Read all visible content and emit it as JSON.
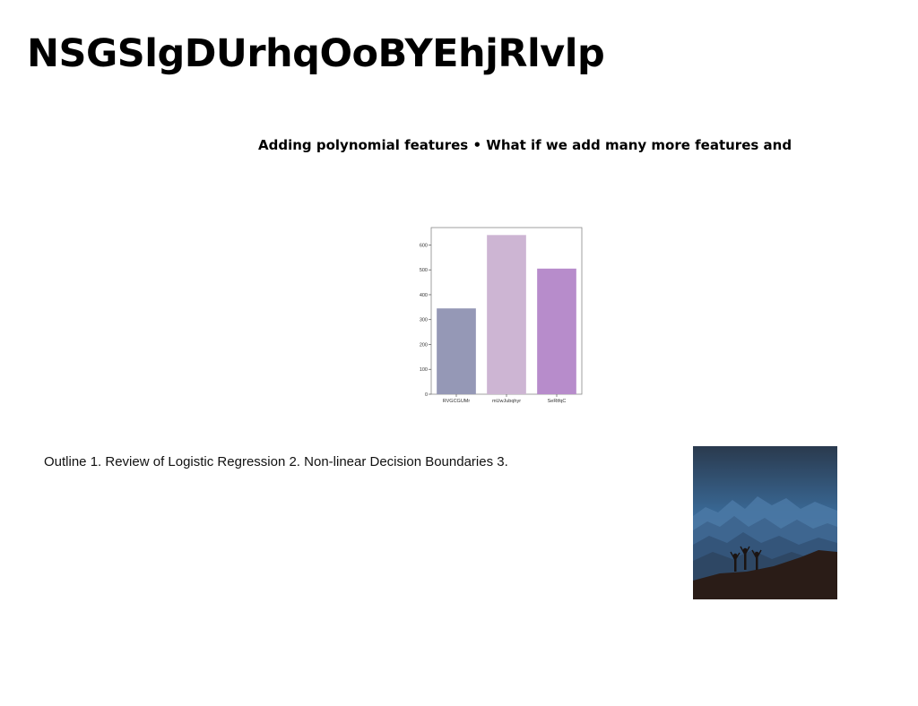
{
  "slide": {
    "title": "NSGSlgDUrhqOoBYEhjRlvlp",
    "subtitle": "Adding polynomial features • What if we add many more features and",
    "outline": "Outline 1. Review of Logistic Regression 2. Non-linear Decision Boundaries 3."
  },
  "chart_data": {
    "type": "bar",
    "categories": [
      "RVGCGUMr",
      "mUwJubqhyr",
      "SeRtfqC"
    ],
    "values": [
      345,
      640,
      505
    ],
    "colors": [
      "#9598b6",
      "#cdb5d3",
      "#b78ccb"
    ],
    "ylim": [
      0,
      670
    ],
    "yticks": [
      0,
      100,
      200,
      300,
      400,
      500,
      600
    ],
    "grid": false
  },
  "photo": {
    "icon": "mountain-landscape-silhouette-image",
    "sky_top": "#2c3d52",
    "sky_bottom": "#3d6fa0",
    "ground": "#2a1c17"
  }
}
